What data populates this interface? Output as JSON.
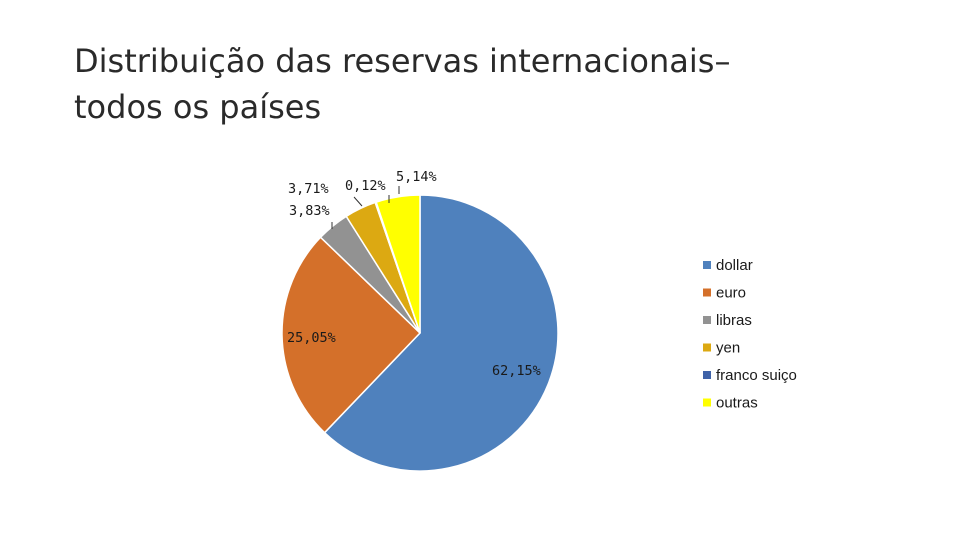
{
  "title": {
    "line1": "Distribuição das reservas internacionais–",
    "line2": "todos os países"
  },
  "chart_data": {
    "type": "pie",
    "title": "Distribuição das reservas internacionais– todos os países",
    "categories": [
      "dollar",
      "euro",
      "libras",
      "yen",
      "franco suiço",
      "outras"
    ],
    "values": [
      62.15,
      25.05,
      3.83,
      3.71,
      0.12,
      5.14
    ],
    "value_labels": [
      "62,15%",
      "25,05%",
      "3,83%",
      "3,71%",
      "0,12%",
      "5,14%"
    ],
    "colors": [
      "#4f81bd",
      "#d4702a",
      "#929292",
      "#dca912",
      "#3f62a8",
      "#ffff00"
    ],
    "start_angle_deg": 0,
    "direction": "clockwise",
    "legend_position": "right"
  }
}
